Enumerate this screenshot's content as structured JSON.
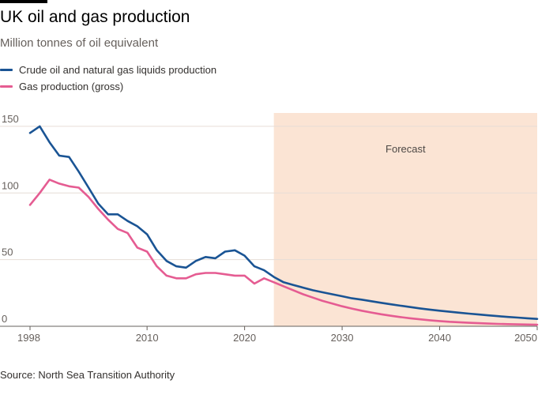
{
  "header": {
    "title": "UK oil and gas production",
    "subtitle": "Million tonnes of oil equivalent"
  },
  "footer": {
    "source": "Source: North Sea Transition Authority"
  },
  "colors": {
    "oil": "#1a5494",
    "gas": "#e55c92",
    "forecast_shade": "#fbe4d4",
    "grid": "#e6ddd6",
    "axis": "#66605c"
  },
  "chart_data": {
    "type": "line",
    "title": "UK oil and gas production",
    "subtitle": "Million tonnes of oil equivalent",
    "xlabel": "",
    "ylabel": "",
    "xlim": [
      1998,
      2050
    ],
    "ylim": [
      0,
      160
    ],
    "x_ticks": [
      1998,
      2010,
      2020,
      2030,
      2040,
      2050
    ],
    "y_ticks": [
      0,
      50,
      100,
      150
    ],
    "grid": "horizontal",
    "legend_position": "top-left",
    "forecast": {
      "start": 2023,
      "end": 2050,
      "label": "Forecast"
    },
    "series": [
      {
        "name": "Crude oil and natural gas liquids production",
        "color": "#1a5494",
        "x": [
          1998,
          1999,
          2000,
          2001,
          2002,
          2003,
          2004,
          2005,
          2006,
          2007,
          2008,
          2009,
          2010,
          2011,
          2012,
          2013,
          2014,
          2015,
          2016,
          2017,
          2018,
          2019,
          2020,
          2021,
          2022,
          2023,
          2024,
          2025,
          2026,
          2027,
          2028,
          2029,
          2030,
          2031,
          2032,
          2033,
          2034,
          2035,
          2036,
          2037,
          2038,
          2039,
          2040,
          2041,
          2042,
          2043,
          2044,
          2045,
          2046,
          2047,
          2048,
          2049,
          2050
        ],
        "values": [
          145,
          150,
          138,
          128,
          127,
          116,
          104,
          92,
          84,
          84,
          79,
          75,
          69,
          57,
          49,
          45,
          44,
          49,
          52,
          51,
          56,
          57,
          53,
          45,
          42,
          37,
          33,
          31,
          29,
          27,
          25.5,
          24,
          22.5,
          21,
          20,
          18.8,
          17.6,
          16.5,
          15.4,
          14.4,
          13.4,
          12.5,
          11.7,
          10.9,
          10.2,
          9.5,
          8.8,
          8.2,
          7.6,
          7.0,
          6.5,
          6.0,
          5.5
        ]
      },
      {
        "name": "Gas production (gross)",
        "color": "#e55c92",
        "x": [
          1998,
          1999,
          2000,
          2001,
          2002,
          2003,
          2004,
          2005,
          2006,
          2007,
          2008,
          2009,
          2010,
          2011,
          2012,
          2013,
          2014,
          2015,
          2016,
          2017,
          2018,
          2019,
          2020,
          2021,
          2022,
          2023,
          2024,
          2025,
          2026,
          2027,
          2028,
          2029,
          2030,
          2031,
          2032,
          2033,
          2034,
          2035,
          2036,
          2037,
          2038,
          2039,
          2040,
          2041,
          2042,
          2043,
          2044,
          2045,
          2046,
          2047,
          2048,
          2049,
          2050
        ],
        "values": [
          91,
          100,
          110,
          107,
          105,
          104,
          97,
          88,
          80,
          73,
          70,
          59,
          56,
          45,
          38,
          36,
          36,
          39,
          40,
          40,
          39,
          38,
          38,
          32,
          36,
          33,
          30,
          27,
          24,
          21.5,
          19,
          17,
          15,
          13.3,
          11.7,
          10.3,
          9.0,
          7.9,
          6.9,
          6.0,
          5.2,
          4.5,
          3.9,
          3.4,
          3.0,
          2.6,
          2.3,
          2.0,
          1.8,
          1.6,
          1.4,
          1.3,
          1.2
        ]
      }
    ]
  }
}
